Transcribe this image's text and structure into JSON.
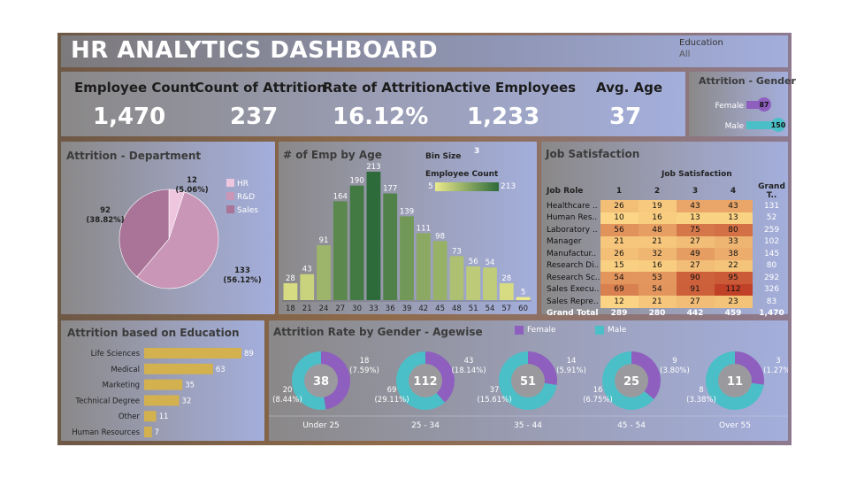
{
  "header": {
    "title": "HR ANALYTICS DASHBOARD",
    "filter_label": "Education",
    "filter_value": "All"
  },
  "kpis": [
    {
      "label": "Employee Count",
      "value": "1,470"
    },
    {
      "label": "Count of Attrition",
      "value": "237"
    },
    {
      "label": "Rate of Attrition",
      "value": "16.12%"
    },
    {
      "label": "Active Employees",
      "value": "1,233"
    },
    {
      "label": "Avg. Age",
      "value": "37"
    }
  ],
  "gender_panel": {
    "title": "Attrition - Gender",
    "rows": [
      {
        "label": "Female",
        "value": 87,
        "color": "#8e5fbf"
      },
      {
        "label": "Male",
        "value": 150,
        "color": "#4bbfc7"
      }
    ]
  },
  "department_panel": {
    "title": "Attrition - Department"
  },
  "age_panel": {
    "title": "# of Emp by Age",
    "bin_size_label": "Bin Size",
    "bin_size_value": "3",
    "legend_title": "Employee Count",
    "legend_min": "5",
    "legend_max": "213"
  },
  "job_panel": {
    "title": "Job Satisfaction",
    "col_title": "Job Satisfaction",
    "row_header": "Job Role",
    "grand_total_header": "Grand T..",
    "columns": [
      "1",
      "2",
      "3",
      "4"
    ],
    "rows": [
      {
        "role": "Healthcare ..",
        "values": [
          26,
          19,
          43,
          43
        ],
        "total": 131
      },
      {
        "role": "Human Res..",
        "values": [
          10,
          16,
          13,
          13
        ],
        "total": 52
      },
      {
        "role": "Laboratory ..",
        "values": [
          56,
          48,
          75,
          80
        ],
        "total": 259
      },
      {
        "role": "Manager",
        "values": [
          21,
          21,
          27,
          33
        ],
        "total": 102
      },
      {
        "role": "Manufactur..",
        "values": [
          26,
          32,
          49,
          38
        ],
        "total": 145
      },
      {
        "role": "Research Di..",
        "values": [
          15,
          16,
          27,
          22
        ],
        "total": 80
      },
      {
        "role": "Research Sc..",
        "values": [
          54,
          53,
          90,
          95
        ],
        "total": 292
      },
      {
        "role": "Sales Execu..",
        "values": [
          69,
          54,
          91,
          112
        ],
        "total": 326
      },
      {
        "role": "Sales Repre..",
        "values": [
          12,
          21,
          27,
          23
        ],
        "total": 83
      }
    ],
    "total_row": {
      "role": "Grand Total",
      "values": [
        289,
        280,
        442,
        459
      ],
      "total": "1,470"
    }
  },
  "education_panel": {
    "title": "Attrition based on Education"
  },
  "agewise_panel": {
    "title": "Attrition Rate by Gender - Agewise",
    "legend": [
      {
        "label": "Female",
        "color": "#8e5fbf"
      },
      {
        "label": "Male",
        "color": "#4bbfc7"
      }
    ]
  },
  "chart_data": [
    {
      "type": "pie",
      "title": "Attrition - Department",
      "categories": [
        "HR",
        "R&D",
        "Sales"
      ],
      "values": [
        12,
        133,
        92
      ],
      "percent_labels": [
        "(5.06%)",
        "(56.12%)",
        "(38.82%)"
      ],
      "colors": [
        "#efc6df",
        "#c996b8",
        "#a97497"
      ],
      "legend_placement": "right"
    },
    {
      "type": "bar",
      "title": "# of Emp by Age",
      "categories": [
        "18",
        "21",
        "24",
        "27",
        "30",
        "33",
        "36",
        "39",
        "42",
        "45",
        "48",
        "51",
        "54",
        "57",
        "60"
      ],
      "values": [
        28,
        43,
        91,
        164,
        190,
        213,
        177,
        139,
        111,
        98,
        73,
        56,
        54,
        28,
        5
      ],
      "ylim": [
        0,
        213
      ]
    },
    {
      "type": "heatmap",
      "title": "Job Satisfaction",
      "x": [
        "1",
        "2",
        "3",
        "4"
      ],
      "y": [
        "Healthcare ..",
        "Human Res..",
        "Laboratory ..",
        "Manager",
        "Manufactur..",
        "Research Di..",
        "Research Sc..",
        "Sales Execu..",
        "Sales Repre.."
      ],
      "values": [
        [
          26,
          19,
          43,
          43
        ],
        [
          10,
          16,
          13,
          13
        ],
        [
          56,
          48,
          75,
          80
        ],
        [
          21,
          21,
          27,
          33
        ],
        [
          26,
          32,
          49,
          38
        ],
        [
          15,
          16,
          27,
          22
        ],
        [
          54,
          53,
          90,
          95
        ],
        [
          69,
          54,
          91,
          112
        ],
        [
          12,
          21,
          27,
          23
        ]
      ]
    },
    {
      "type": "bar",
      "title": "Attrition based on Education",
      "orientation": "horizontal",
      "categories": [
        "Life Sciences",
        "Medical",
        "Marketing",
        "Technical Degree",
        "Other",
        "Human Resources"
      ],
      "values": [
        89,
        63,
        35,
        32,
        11,
        7
      ],
      "color": "#d4b14f"
    },
    {
      "type": "pie",
      "title": "Attrition Rate by Gender - Agewise",
      "categories": [
        "Under 25",
        "25 - 34",
        "35 - 44",
        "45 - 54",
        "Over 55"
      ],
      "series": [
        {
          "name": "Female",
          "values": [
            18,
            43,
            14,
            9,
            3
          ],
          "labels": [
            "18\n(7.59%)",
            "43\n(18.14%)",
            "14\n(5.91%)",
            "9\n(3.80%)",
            "3\n(1.27%)"
          ]
        },
        {
          "name": "Male",
          "values": [
            20,
            69,
            37,
            16,
            8
          ],
          "labels": [
            "20\n(8.44%)",
            "69\n(29.11%)",
            "37\n(15.61%)",
            "16\n(6.75%)",
            "8\n(3.38%)"
          ]
        }
      ],
      "totals": [
        38,
        112,
        51,
        25,
        11
      ]
    }
  ]
}
